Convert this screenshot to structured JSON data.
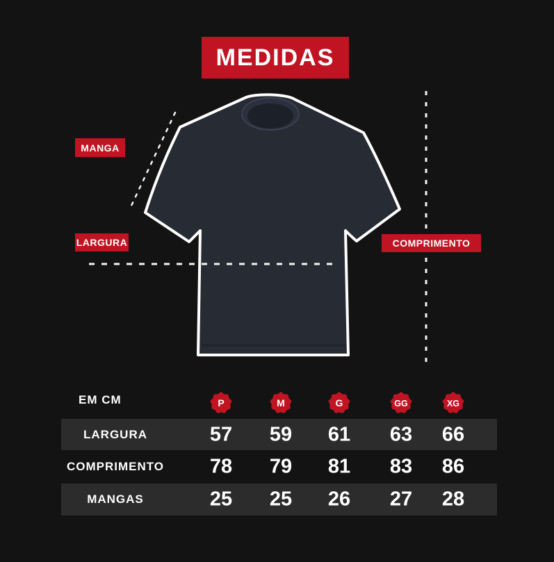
{
  "page": {
    "background": "#131313",
    "accent_red": "#c11422",
    "shirt_fill": "#262b34",
    "stripe_color": "#2c2c2c",
    "outline_color": "#ffffff"
  },
  "title": "MEDIDAS",
  "diagram": {
    "labels": {
      "manga": "MANGA",
      "largura": "LARGURA",
      "comprimento": "COMPRIMENTO"
    }
  },
  "table": {
    "unit_label": "EM CM",
    "sizes": [
      "P",
      "M",
      "G",
      "GG",
      "XG"
    ],
    "rows": [
      {
        "label": "LARGURA",
        "values": [
          57,
          59,
          61,
          63,
          66
        ],
        "striped": true
      },
      {
        "label": "COMPRIMENTO",
        "values": [
          78,
          79,
          81,
          83,
          86
        ],
        "striped": false
      },
      {
        "label": "MANGAS",
        "values": [
          25,
          25,
          26,
          27,
          28
        ],
        "striped": true
      }
    ]
  }
}
